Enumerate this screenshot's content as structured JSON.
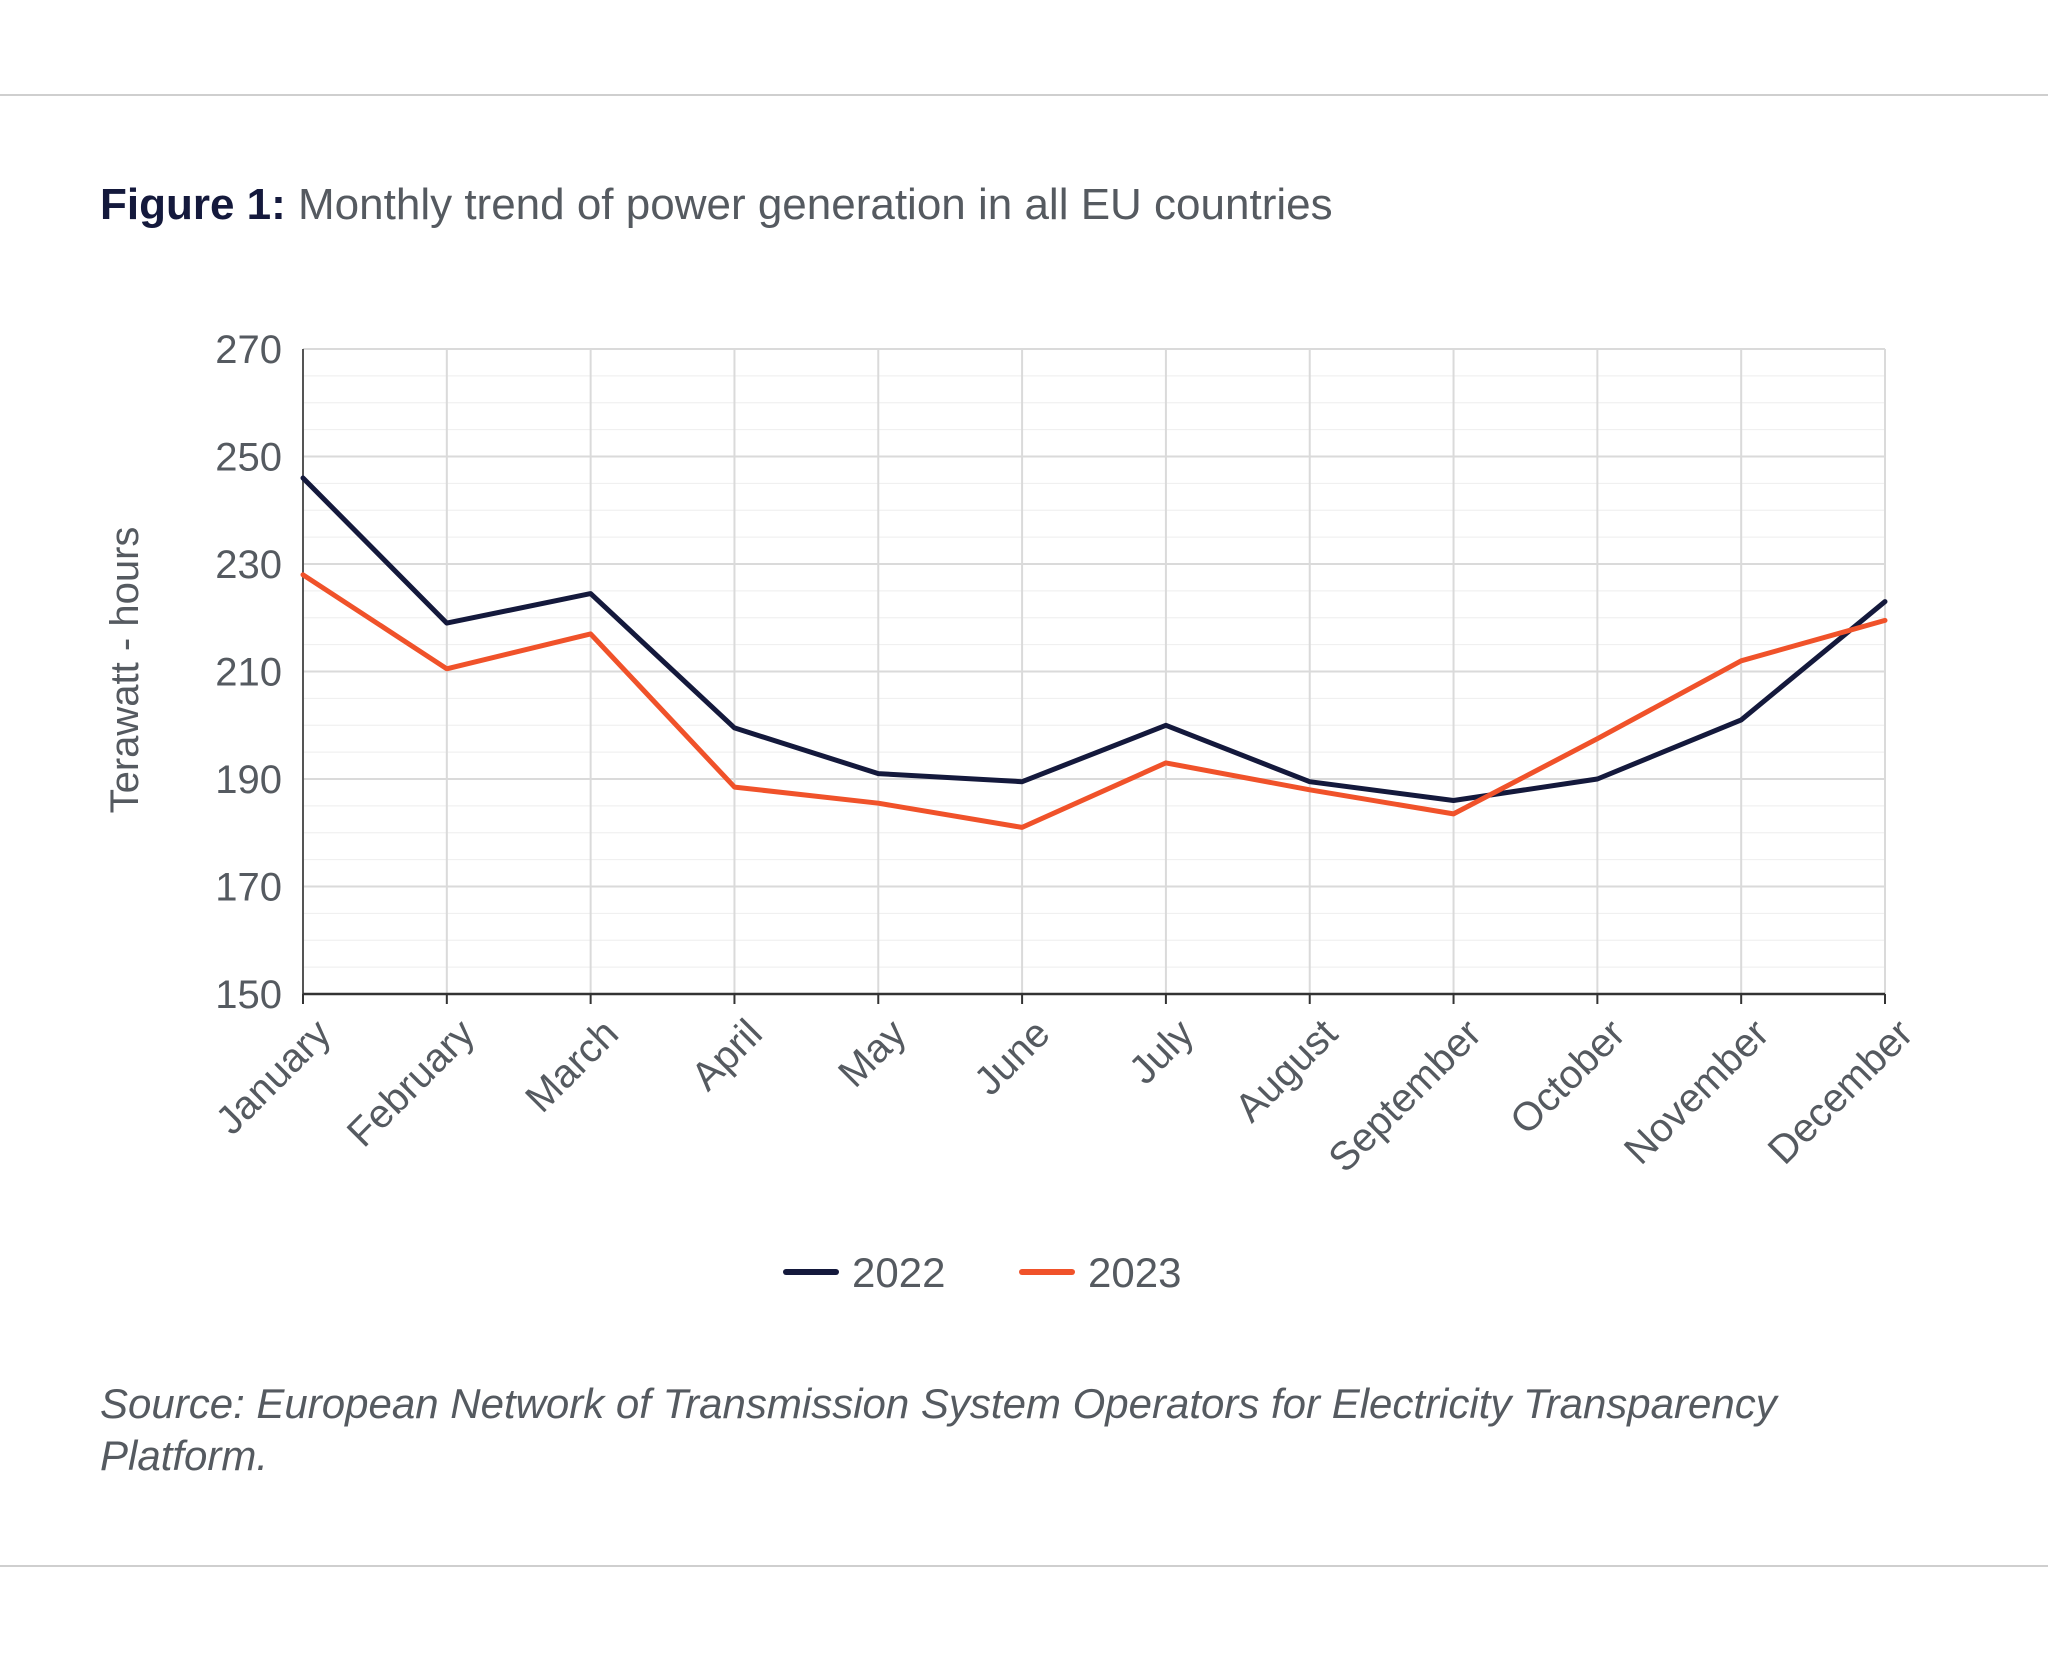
{
  "figure": {
    "label": "Figure 1:",
    "title": "Monthly trend of power generation in all EU countries",
    "source": "Source: European Network of Transmission System Operators for Electricity Transparency Platform."
  },
  "chart_data": {
    "type": "line",
    "title": "Monthly trend of power generation in all EU countries",
    "xlabel": "",
    "ylabel": "Terawatt - hours",
    "ylim": [
      150,
      270
    ],
    "yticks": [
      150,
      170,
      190,
      210,
      230,
      250,
      270
    ],
    "grid": true,
    "legend_position": "bottom",
    "categories": [
      "January",
      "February",
      "March",
      "April",
      "May",
      "June",
      "July",
      "August",
      "September",
      "October",
      "November",
      "December"
    ],
    "series": [
      {
        "name": "2022",
        "color": "#14193c",
        "values": [
          246,
          219,
          224.5,
          199.5,
          191,
          189.5,
          200,
          189.5,
          186,
          190,
          201,
          223
        ]
      },
      {
        "name": "2023",
        "color": "#f0522a",
        "values": [
          228,
          210.5,
          217,
          188.5,
          185.5,
          181,
          193,
          188,
          183.5,
          197.5,
          212,
          219.5
        ]
      }
    ]
  }
}
